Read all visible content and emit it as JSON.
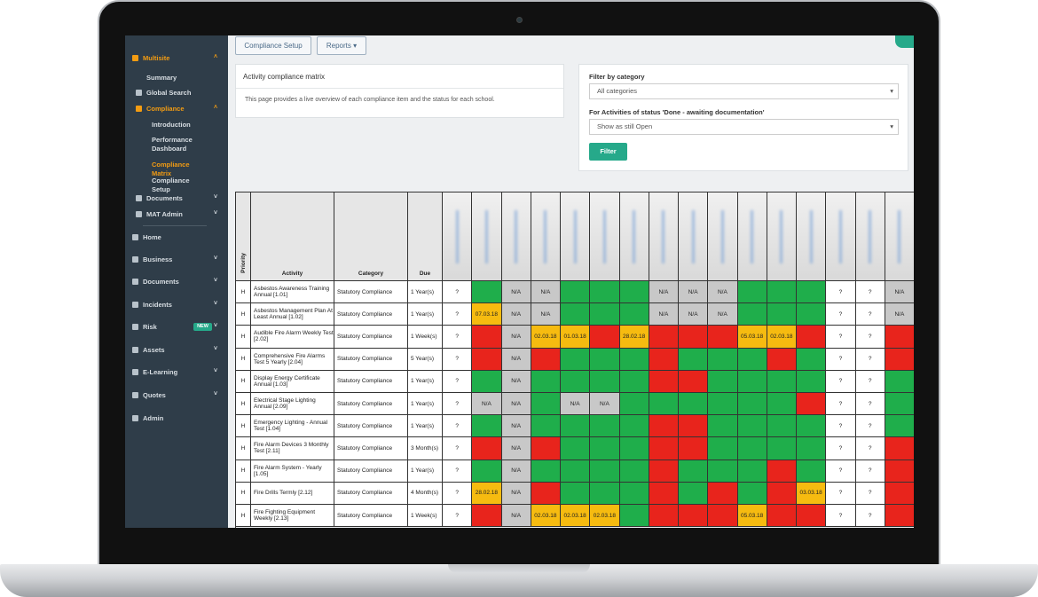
{
  "sidebar": {
    "items": [
      {
        "label": "Multisite",
        "level": 0,
        "active": true,
        "caret": "up"
      },
      {
        "label": "Summary",
        "level": 1
      },
      {
        "label": "Global Search",
        "level": 1
      },
      {
        "label": "Compliance",
        "level": 1,
        "active": true,
        "caret": "up"
      },
      {
        "label": "Introduction",
        "level": 2
      },
      {
        "label": "Performance Dashboard",
        "level": 2
      },
      {
        "label": "Compliance Matrix",
        "level": 2,
        "active": true
      },
      {
        "label": "Compliance Setup",
        "level": 2
      },
      {
        "label": "Documents",
        "level": 1,
        "caret": "down"
      },
      {
        "label": "MAT Admin",
        "level": 1,
        "caret": "down"
      },
      {
        "label": "Home",
        "level": 0
      },
      {
        "label": "Business",
        "level": 0,
        "caret": "down"
      },
      {
        "label": "Documents",
        "level": 0,
        "caret": "down"
      },
      {
        "label": "Incidents",
        "level": 0,
        "caret": "down"
      },
      {
        "label": "Risk",
        "level": 0,
        "caret": "down",
        "badge": "NEW"
      },
      {
        "label": "Assets",
        "level": 0,
        "caret": "down"
      },
      {
        "label": "E-Learning",
        "level": 0,
        "caret": "down"
      },
      {
        "label": "Quotes",
        "level": 0,
        "caret": "down"
      },
      {
        "label": "Admin",
        "level": 0
      }
    ]
  },
  "toolbar": {
    "buttons": [
      "Compliance Setup",
      "Reports"
    ]
  },
  "intro_panel": {
    "title": "Activity compliance matrix",
    "text": "This page provides a live overview of each compliance item and the status for each school."
  },
  "filter_panel": {
    "category_label": "Filter by category",
    "category_value": "All categories",
    "status_label": "For Activities of status 'Done - awaiting documentation'",
    "status_value": "Show as still Open",
    "button": "Filter"
  },
  "matrix": {
    "headers": [
      "Priority",
      "Activity",
      "Category",
      "Due"
    ],
    "status_colors": {
      "q": "#ffffff",
      "g": "#1fae4b",
      "n": "#c8c8c8",
      "r": "#e8241c",
      "a": "#f6bb10"
    },
    "rows": [
      {
        "priority": "H",
        "activity": "Asbestos Awareness Training Annual [1.01]",
        "category": "Statutory Compliance",
        "due": "1 Year(s)",
        "cells": [
          {
            "s": "q",
            "t": "?"
          },
          {
            "s": "g"
          },
          {
            "s": "n",
            "t": "N/A"
          },
          {
            "s": "n",
            "t": "N/A"
          },
          {
            "s": "g"
          },
          {
            "s": "g"
          },
          {
            "s": "g"
          },
          {
            "s": "n",
            "t": "N/A"
          },
          {
            "s": "n",
            "t": "N/A"
          },
          {
            "s": "n",
            "t": "N/A"
          },
          {
            "s": "g"
          },
          {
            "s": "g"
          },
          {
            "s": "g"
          },
          {
            "s": "q",
            "t": "?"
          },
          {
            "s": "q",
            "t": "?"
          },
          {
            "s": "n",
            "t": "N/A"
          }
        ]
      },
      {
        "priority": "H",
        "activity": "Asbestos Management Plan At Least Annual [1.02]",
        "category": "Statutory Compliance",
        "due": "1 Year(s)",
        "cells": [
          {
            "s": "q",
            "t": "?"
          },
          {
            "s": "a",
            "t": "07.03.18"
          },
          {
            "s": "n",
            "t": "N/A"
          },
          {
            "s": "n",
            "t": "N/A"
          },
          {
            "s": "g"
          },
          {
            "s": "g"
          },
          {
            "s": "g"
          },
          {
            "s": "n",
            "t": "N/A"
          },
          {
            "s": "n",
            "t": "N/A"
          },
          {
            "s": "n",
            "t": "N/A"
          },
          {
            "s": "g"
          },
          {
            "s": "g"
          },
          {
            "s": "g"
          },
          {
            "s": "q",
            "t": "?"
          },
          {
            "s": "q",
            "t": "?"
          },
          {
            "s": "n",
            "t": "N/A"
          }
        ]
      },
      {
        "priority": "H",
        "activity": "Audible Fire Alarm Weekly Test [2.02]",
        "category": "Statutory Compliance",
        "due": "1 Week(s)",
        "cells": [
          {
            "s": "q",
            "t": "?"
          },
          {
            "s": "r"
          },
          {
            "s": "n",
            "t": "N/A"
          },
          {
            "s": "a",
            "t": "02.03.18"
          },
          {
            "s": "a",
            "t": "01.03.18"
          },
          {
            "s": "r"
          },
          {
            "s": "a",
            "t": "28.02.18"
          },
          {
            "s": "r"
          },
          {
            "s": "r"
          },
          {
            "s": "r"
          },
          {
            "s": "a",
            "t": "05.03.18"
          },
          {
            "s": "a",
            "t": "02.03.18"
          },
          {
            "s": "r"
          },
          {
            "s": "q",
            "t": "?"
          },
          {
            "s": "q",
            "t": "?"
          },
          {
            "s": "r"
          }
        ]
      },
      {
        "priority": "H",
        "activity": "Comprehensive Fire Alarms Test 5 Yearly [2.04]",
        "category": "Statutory Compliance",
        "due": "5 Year(s)",
        "cells": [
          {
            "s": "q",
            "t": "?"
          },
          {
            "s": "r"
          },
          {
            "s": "n",
            "t": "N/A"
          },
          {
            "s": "r"
          },
          {
            "s": "g"
          },
          {
            "s": "g"
          },
          {
            "s": "g"
          },
          {
            "s": "r"
          },
          {
            "s": "g"
          },
          {
            "s": "g"
          },
          {
            "s": "g"
          },
          {
            "s": "r"
          },
          {
            "s": "g"
          },
          {
            "s": "q",
            "t": "?"
          },
          {
            "s": "q",
            "t": "?"
          },
          {
            "s": "r"
          }
        ]
      },
      {
        "priority": "H",
        "activity": "Display Energy Certificate Annual [1.03]",
        "category": "Statutory Compliance",
        "due": "1 Year(s)",
        "cells": [
          {
            "s": "q",
            "t": "?"
          },
          {
            "s": "g"
          },
          {
            "s": "n",
            "t": "N/A"
          },
          {
            "s": "g"
          },
          {
            "s": "g"
          },
          {
            "s": "g"
          },
          {
            "s": "g"
          },
          {
            "s": "r"
          },
          {
            "s": "r"
          },
          {
            "s": "g"
          },
          {
            "s": "g"
          },
          {
            "s": "g"
          },
          {
            "s": "g"
          },
          {
            "s": "q",
            "t": "?"
          },
          {
            "s": "q",
            "t": "?"
          },
          {
            "s": "g"
          }
        ]
      },
      {
        "priority": "H",
        "activity": "Electrical Stage Lighting Annual [2.09]",
        "category": "Statutory Compliance",
        "due": "1 Year(s)",
        "cells": [
          {
            "s": "q",
            "t": "?"
          },
          {
            "s": "n",
            "t": "N/A"
          },
          {
            "s": "n",
            "t": "N/A"
          },
          {
            "s": "g"
          },
          {
            "s": "n",
            "t": "N/A"
          },
          {
            "s": "n",
            "t": "N/A"
          },
          {
            "s": "g"
          },
          {
            "s": "g"
          },
          {
            "s": "g"
          },
          {
            "s": "g"
          },
          {
            "s": "g"
          },
          {
            "s": "g"
          },
          {
            "s": "r"
          },
          {
            "s": "q",
            "t": "?"
          },
          {
            "s": "q",
            "t": "?"
          },
          {
            "s": "g"
          }
        ]
      },
      {
        "priority": "H",
        "activity": "Emergency Lighting - Annual Test [1.04]",
        "category": "Statutory Compliance",
        "due": "1 Year(s)",
        "cells": [
          {
            "s": "q",
            "t": "?"
          },
          {
            "s": "g"
          },
          {
            "s": "n",
            "t": "N/A"
          },
          {
            "s": "g"
          },
          {
            "s": "g"
          },
          {
            "s": "g"
          },
          {
            "s": "g"
          },
          {
            "s": "r"
          },
          {
            "s": "r"
          },
          {
            "s": "g"
          },
          {
            "s": "g"
          },
          {
            "s": "g"
          },
          {
            "s": "g"
          },
          {
            "s": "q",
            "t": "?"
          },
          {
            "s": "q",
            "t": "?"
          },
          {
            "s": "g"
          }
        ]
      },
      {
        "priority": "H",
        "activity": "Fire Alarm Devices 3 Monthly Test [2.11]",
        "category": "Statutory Compliance",
        "due": "3 Month(s)",
        "cells": [
          {
            "s": "q",
            "t": "?"
          },
          {
            "s": "r"
          },
          {
            "s": "n",
            "t": "N/A"
          },
          {
            "s": "r"
          },
          {
            "s": "g"
          },
          {
            "s": "g"
          },
          {
            "s": "g"
          },
          {
            "s": "r"
          },
          {
            "s": "r"
          },
          {
            "s": "g"
          },
          {
            "s": "g"
          },
          {
            "s": "g"
          },
          {
            "s": "g"
          },
          {
            "s": "q",
            "t": "?"
          },
          {
            "s": "q",
            "t": "?"
          },
          {
            "s": "r"
          }
        ]
      },
      {
        "priority": "H",
        "activity": "Fire Alarm System - Yearly [1.05]",
        "category": "Statutory Compliance",
        "due": "1 Year(s)",
        "cells": [
          {
            "s": "q",
            "t": "?"
          },
          {
            "s": "g"
          },
          {
            "s": "n",
            "t": "N/A"
          },
          {
            "s": "g"
          },
          {
            "s": "g"
          },
          {
            "s": "g"
          },
          {
            "s": "g"
          },
          {
            "s": "r"
          },
          {
            "s": "g"
          },
          {
            "s": "g"
          },
          {
            "s": "g"
          },
          {
            "s": "r"
          },
          {
            "s": "g"
          },
          {
            "s": "q",
            "t": "?"
          },
          {
            "s": "q",
            "t": "?"
          },
          {
            "s": "r"
          }
        ]
      },
      {
        "priority": "H",
        "activity": "Fire Drills Termly [2.12]",
        "category": "Statutory Compliance",
        "due": "4 Month(s)",
        "cells": [
          {
            "s": "q",
            "t": "?"
          },
          {
            "s": "a",
            "t": "28.02.18"
          },
          {
            "s": "n",
            "t": "N/A"
          },
          {
            "s": "r"
          },
          {
            "s": "g"
          },
          {
            "s": "g"
          },
          {
            "s": "g"
          },
          {
            "s": "r"
          },
          {
            "s": "g"
          },
          {
            "s": "r"
          },
          {
            "s": "g"
          },
          {
            "s": "r"
          },
          {
            "s": "a",
            "t": "03.03.18"
          },
          {
            "s": "q",
            "t": "?"
          },
          {
            "s": "q",
            "t": "?"
          },
          {
            "s": "r"
          }
        ]
      },
      {
        "priority": "H",
        "activity": "Fire Fighting Equipment Weekly [2.13]",
        "category": "Statutory Compliance",
        "due": "1 Week(s)",
        "cells": [
          {
            "s": "q",
            "t": "?"
          },
          {
            "s": "r"
          },
          {
            "s": "n",
            "t": "N/A"
          },
          {
            "s": "a",
            "t": "02.03.18"
          },
          {
            "s": "a",
            "t": "02.03.18"
          },
          {
            "s": "a",
            "t": "02.03.18"
          },
          {
            "s": "g"
          },
          {
            "s": "r"
          },
          {
            "s": "r"
          },
          {
            "s": "r"
          },
          {
            "s": "a",
            "t": "05.03.18"
          },
          {
            "s": "r"
          },
          {
            "s": "r"
          },
          {
            "s": "q",
            "t": "?"
          },
          {
            "s": "q",
            "t": "?"
          },
          {
            "s": "r"
          }
        ]
      }
    ]
  }
}
